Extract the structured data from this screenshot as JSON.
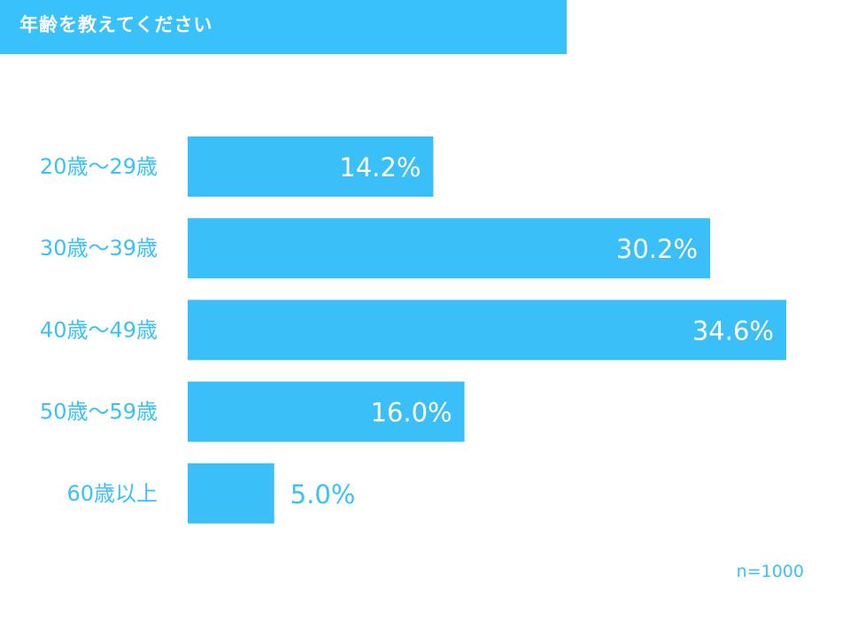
{
  "header": {
    "title": "年齢を教えてください"
  },
  "colors": {
    "accent": "#38c1fa",
    "bar": "#3bbff9",
    "label": "#38c1fa",
    "bar_text": "#ffffff"
  },
  "chart_data": {
    "type": "bar",
    "orientation": "horizontal",
    "categories": [
      "20歳〜29歳",
      "30歳〜39歳",
      "40歳〜49歳",
      "50歳〜59歳",
      "60歳以上"
    ],
    "values": [
      14.2,
      30.2,
      34.6,
      16.0,
      5.0
    ],
    "value_labels": [
      "14.2%",
      "30.2%",
      "34.6%",
      "16.0%",
      "5.0%"
    ],
    "unit": "%",
    "xlim": [
      0,
      34.6
    ],
    "grid": false,
    "legend": false
  },
  "footer": {
    "note": "n=1000"
  }
}
